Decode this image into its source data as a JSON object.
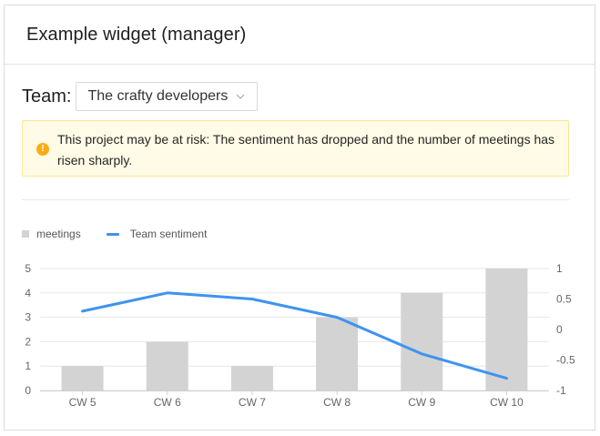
{
  "widget": {
    "title": "Example widget (manager)"
  },
  "team": {
    "label": "Team:",
    "selected": "The crafty developers"
  },
  "alert": {
    "icon": "exclamation-icon",
    "text": "This project may be at risk: The sentiment has dropped and the number of meetings has risen sharply."
  },
  "colors": {
    "bar": "#d3d3d3",
    "line": "#3f93f0",
    "alert_bg": "#fffbe6",
    "alert_border": "#ffe58f",
    "alert_icon": "#faad14"
  },
  "chart_data": {
    "type": "bar",
    "categories": [
      "CW 5",
      "CW 6",
      "CW 7",
      "CW 8",
      "CW 9",
      "CW 10"
    ],
    "series": [
      {
        "name": "meetings",
        "type": "bar",
        "axis": "left",
        "values": [
          1,
          2,
          1,
          3,
          4,
          5
        ]
      },
      {
        "name": "Team sentiment",
        "type": "line",
        "axis": "right",
        "values": [
          0.3,
          0.6,
          0.5,
          0.2,
          -0.4,
          -0.8
        ]
      }
    ],
    "y_left": {
      "min": 0,
      "max": 5,
      "ticks": [
        "0",
        "1",
        "2",
        "3",
        "4",
        "5"
      ]
    },
    "y_right": {
      "min": -1,
      "max": 1,
      "ticks": [
        "-1",
        "-0.5",
        "0",
        "0.5",
        "1"
      ]
    },
    "legend_position": "top-left",
    "grid": true
  }
}
